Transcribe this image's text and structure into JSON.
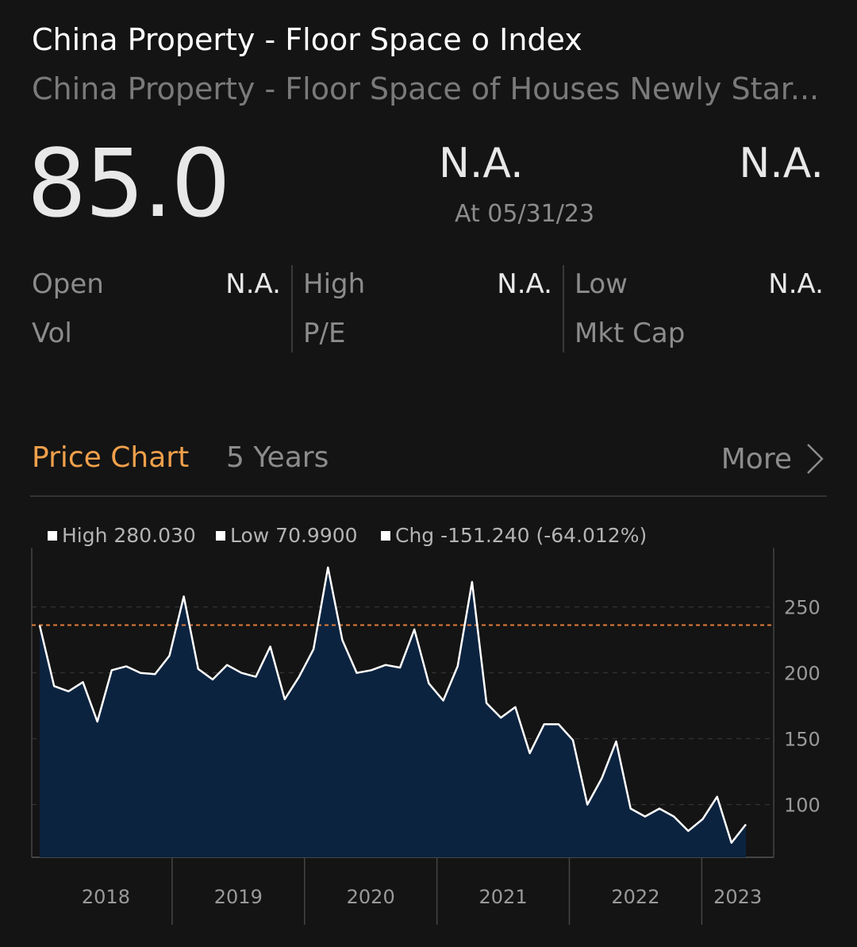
{
  "header": {
    "title": "China Property - Floor Space o Index",
    "subtitle": "China Property - Floor Space of Houses Newly Star...",
    "price": "85.0",
    "change": "N.A.",
    "change_pct": "N.A.",
    "as_of": "At 05/31/23"
  },
  "stats": [
    [
      {
        "label": "Open",
        "value": "N.A."
      },
      {
        "label": "Vol",
        "value": ""
      }
    ],
    [
      {
        "label": "High",
        "value": "N.A."
      },
      {
        "label": "P/E",
        "value": ""
      }
    ],
    [
      {
        "label": "Low",
        "value": "N.A."
      },
      {
        "label": "Mkt Cap",
        "value": ""
      }
    ]
  ],
  "chart_header": {
    "tab_label": "Price Chart",
    "range_label": "5 Years",
    "more_label": "More"
  },
  "legend": {
    "high": "High 280.030",
    "low": "Low 70.9900",
    "chg": "Chg -151.240 (-64.012%)"
  },
  "colors": {
    "background": "#141414",
    "accent": "#f0a04b",
    "area_fill": "#0c2340",
    "line": "#ffffff",
    "reference_line": "#e07b39"
  },
  "chart_data": {
    "type": "area",
    "x_start": "2018-01",
    "x_end": "2023-05",
    "x_ticks": [
      "2018",
      "2019",
      "2020",
      "2021",
      "2022",
      "2023"
    ],
    "y_ticks": [
      100,
      150,
      200,
      250
    ],
    "ylim": [
      60,
      295
    ],
    "reference_value": 236.23,
    "series": [
      {
        "values": [
          236,
          190,
          186,
          193,
          163,
          202,
          205,
          200,
          199,
          213,
          258,
          203,
          195,
          206,
          200,
          197,
          220,
          180,
          197,
          218,
          280,
          225,
          200,
          202,
          206,
          204,
          233,
          192,
          179,
          205,
          269,
          177,
          166,
          174,
          139,
          161,
          161,
          149,
          100,
          120,
          148,
          97,
          91,
          97,
          91,
          80,
          89,
          106,
          71,
          85
        ]
      }
    ]
  }
}
